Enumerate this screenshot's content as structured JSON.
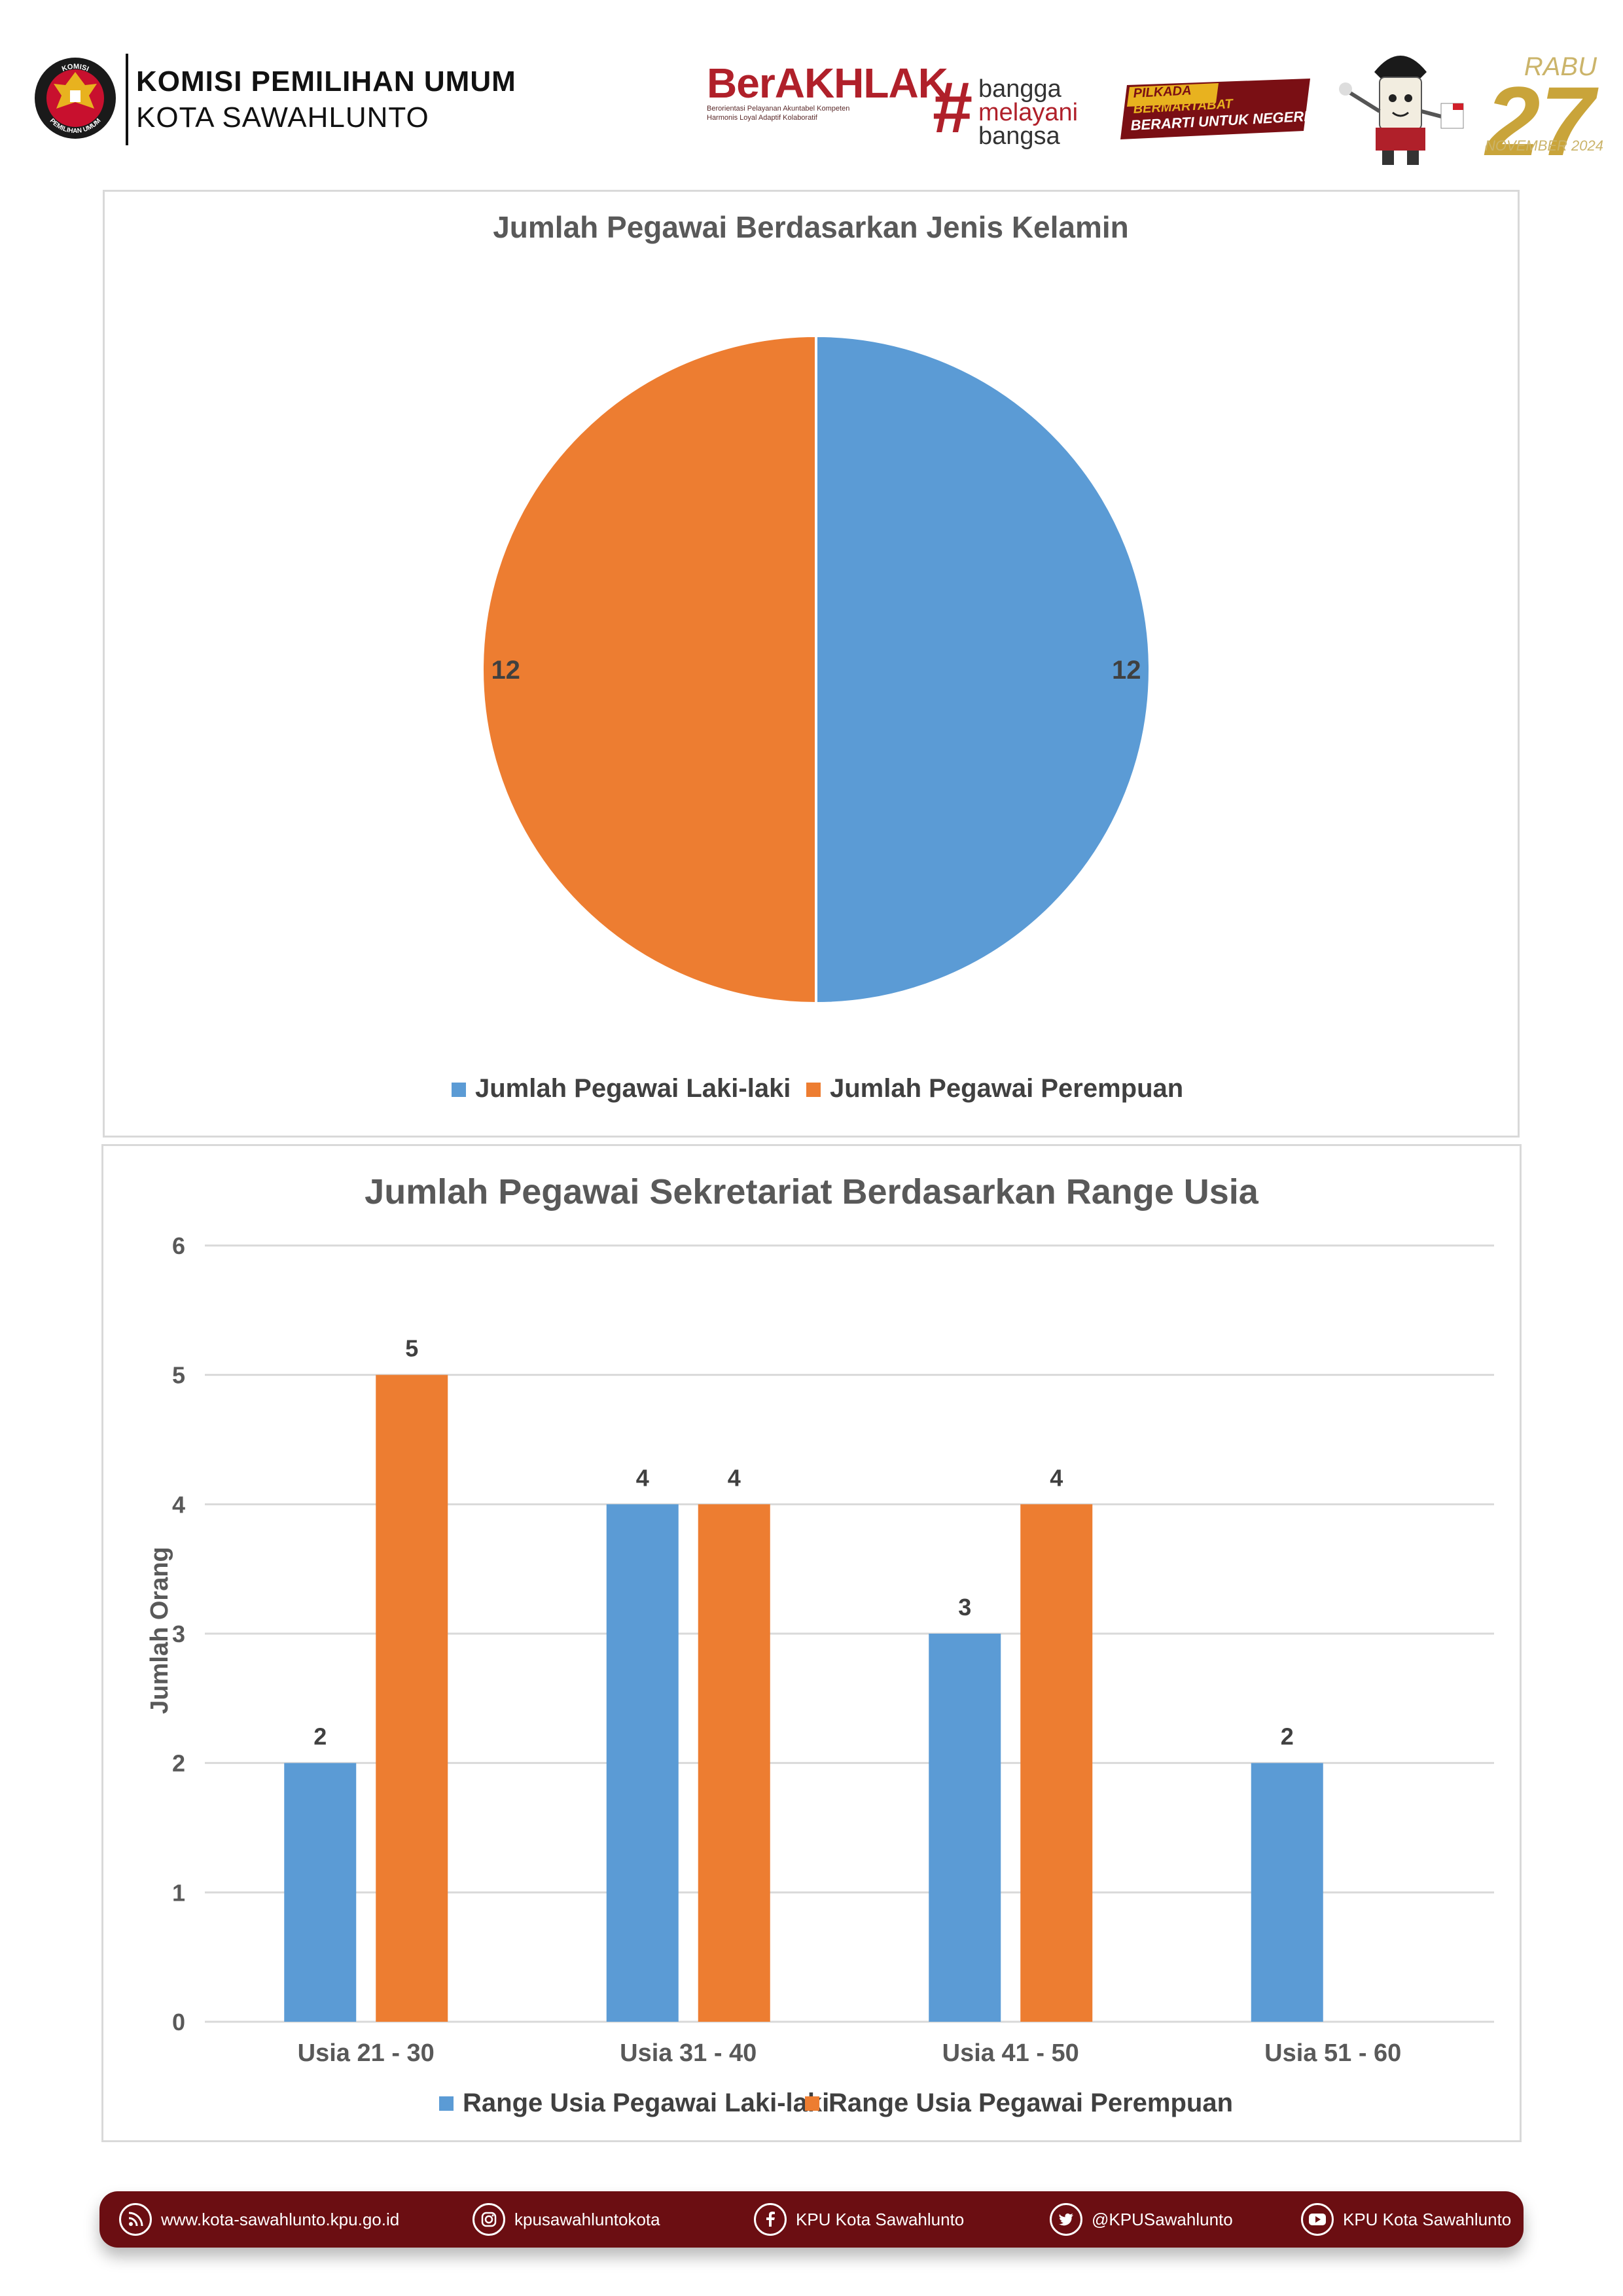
{
  "header": {
    "org_name": "KOMISI PEMILIHAN UMUM",
    "org_city": "KOTA SAWAHLUNTO",
    "kpu_logo_ring_top": "KOMISI",
    "kpu_logo_ring_bottom": "PEMILIHAN UMUM",
    "berakhlak_word": "BerAKHLAK",
    "berakhlak_tagline_1": "Berorientasi Pelayanan Akuntabel Kompeten",
    "berakhlak_tagline_2": "Harmonis Loyal Adaptif Kolaboratif",
    "bangga_lines": [
      "bangga",
      "melayani",
      "bangsa"
    ],
    "pilkada_line1": "PILKADA",
    "pilkada_line2": "BERMARTABAT",
    "pilkada_line3": "BERARTI UNTUK NEGERI",
    "anniversary_day": "RABU",
    "anniversary_number": "27",
    "anniversary_sub": "NOVEMBER 2024",
    "brand_red": "#b0202a"
  },
  "chart_data": [
    {
      "type": "pie",
      "title": "Jumlah Pegawai Berdasarkan Jenis Kelamin",
      "series": [
        {
          "name": "Jumlah Pegawai Laki-laki",
          "value": 12,
          "color": "#5b9bd5"
        },
        {
          "name": "Jumlah Pegawai Perempuan",
          "value": 12,
          "color": "#ed7d31"
        }
      ],
      "data_labels": [
        "12",
        "12"
      ],
      "legend_position": "bottom"
    },
    {
      "type": "bar",
      "title": "Jumlah Pegawai Sekretariat Berdasarkan Range Usia",
      "ylabel": "Jumlah Orang",
      "xlabel": "",
      "categories": [
        "Usia 21 - 30",
        "Usia 31 - 40",
        "Usia 41 - 50",
        "Usia 51 - 60"
      ],
      "series": [
        {
          "name": "Range Usia Pegawai Laki-laki",
          "values": [
            2,
            4,
            3,
            2
          ],
          "color": "#5b9bd5"
        },
        {
          "name": "Range Usia Pegawai Perempuan",
          "values": [
            5,
            4,
            4,
            null
          ],
          "color": "#ed7d31"
        }
      ],
      "ylim": [
        0,
        6
      ],
      "yticks": [
        "0",
        "1",
        "2",
        "3",
        "4",
        "5",
        "6"
      ],
      "grid": true,
      "legend_position": "bottom"
    }
  ],
  "footer": {
    "items": [
      {
        "icon": "website-icon",
        "label": "www.kota-sawahlunto.kpu.go.id"
      },
      {
        "icon": "instagram-icon",
        "label": "kpusawahluntokota"
      },
      {
        "icon": "facebook-icon",
        "label": "KPU Kota Sawahlunto"
      },
      {
        "icon": "twitter-icon",
        "label": "@KPUSawahlunto"
      },
      {
        "icon": "youtube-icon",
        "label": "KPU Kota Sawahlunto"
      }
    ],
    "background": "#6b0e12"
  }
}
